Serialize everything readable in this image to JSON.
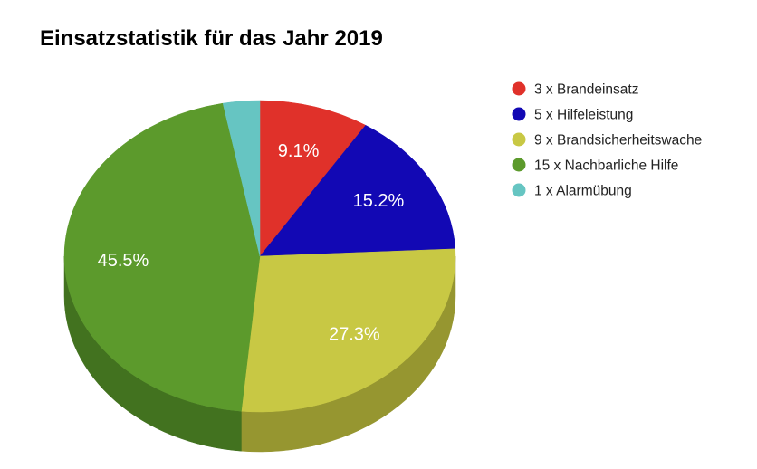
{
  "chart_data": {
    "type": "pie",
    "title": "Einsatzstatistik für das Jahr 2019",
    "three_d": true,
    "legend_position": "right",
    "slices": [
      {
        "label": "3 x Brandeinsatz",
        "value": 3,
        "percent_label": "9.1%",
        "color": "#e0312a",
        "side_color": "#a32520"
      },
      {
        "label": "5 x Hilfeleistung",
        "value": 5,
        "percent_label": "15.2%",
        "color": "#1208b4",
        "side_color": "#0b0580"
      },
      {
        "label": "9 x Brandsicherheitswache",
        "value": 9,
        "percent_label": "27.3%",
        "color": "#c8c844",
        "side_color": "#969630"
      },
      {
        "label": "15 x Nachbarliche Hilfe",
        "value": 15,
        "percent_label": "45.5%",
        "color": "#5c9a2c",
        "side_color": "#42721f"
      },
      {
        "label": "1 x Alarmübung",
        "value": 1,
        "percent_label": "",
        "color": "#66c5c2",
        "side_color": "#4a9896"
      }
    ]
  }
}
